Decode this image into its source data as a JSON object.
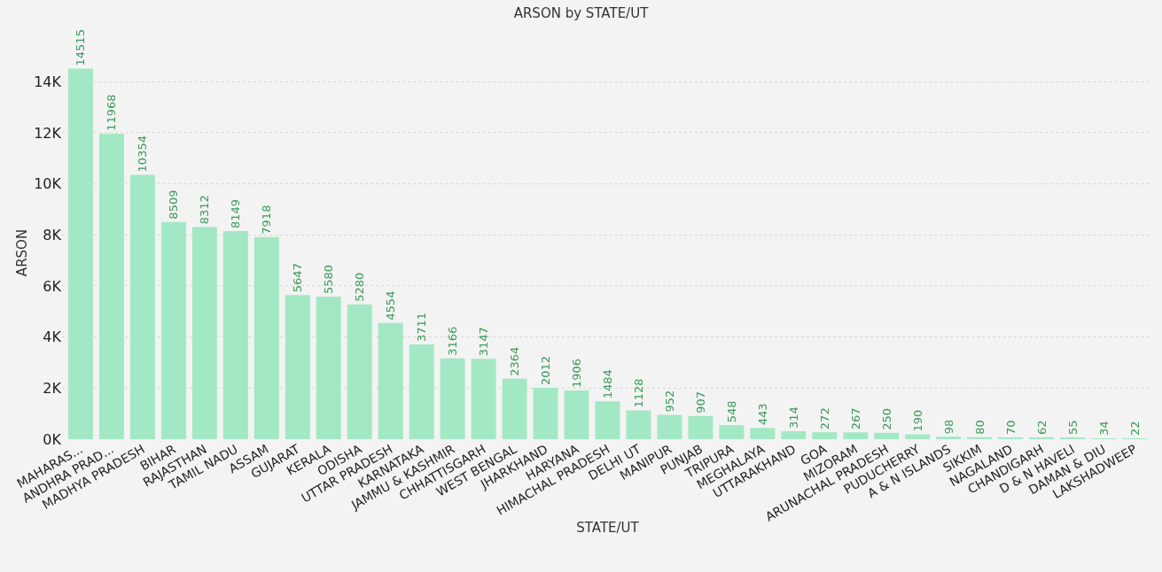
{
  "chart_data": {
    "type": "bar",
    "title": "ARSON by STATE/UT",
    "xlabel": "STATE/UT",
    "ylabel": "ARSON",
    "categories": [
      "MAHARAS...",
      "ANDHRA PRAD...",
      "MADHYA PRADESH",
      "BIHAR",
      "RAJASTHAN",
      "TAMIL NADU",
      "ASSAM",
      "GUJARAT",
      "KERALA",
      "ODISHA",
      "UTTAR PRADESH",
      "KARNATAKA",
      "JAMMU & KASHMIR",
      "CHHATTISGARH",
      "WEST BENGAL",
      "JHARKHAND",
      "HARYANA",
      "HIMACHAL PRADESH",
      "DELHI UT",
      "MANIPUR",
      "PUNJAB",
      "TRIPURA",
      "MEGHALAYA",
      "UTTARAKHAND",
      "GOA",
      "MIZORAM",
      "ARUNACHAL PRADESH",
      "PUDUCHERRY",
      "A & N ISLANDS",
      "SIKKIM",
      "NAGALAND",
      "CHANDIGARH",
      "D & N HAVELI",
      "DAMAN & DIU",
      "LAKSHADWEEP"
    ],
    "values": [
      14515,
      11968,
      10354,
      8509,
      8312,
      8149,
      7918,
      5647,
      5580,
      5280,
      4554,
      3711,
      3166,
      3147,
      2364,
      2012,
      1906,
      1484,
      1128,
      952,
      907,
      548,
      443,
      314,
      272,
      267,
      250,
      190,
      98,
      80,
      70,
      62,
      55,
      34,
      22
    ],
    "color": "#a3e8c4",
    "data_labels": true,
    "grid": "y",
    "ylim": [
      0,
      14600
    ],
    "yticks": [
      {
        "value": 0,
        "label": "0K"
      },
      {
        "value": 2000,
        "label": "2K"
      },
      {
        "value": 4000,
        "label": "4K"
      },
      {
        "value": 6000,
        "label": "6K"
      },
      {
        "value": 8000,
        "label": "8K"
      },
      {
        "value": 10000,
        "label": "10K"
      },
      {
        "value": 12000,
        "label": "12K"
      },
      {
        "value": 14000,
        "label": "14K"
      }
    ]
  }
}
